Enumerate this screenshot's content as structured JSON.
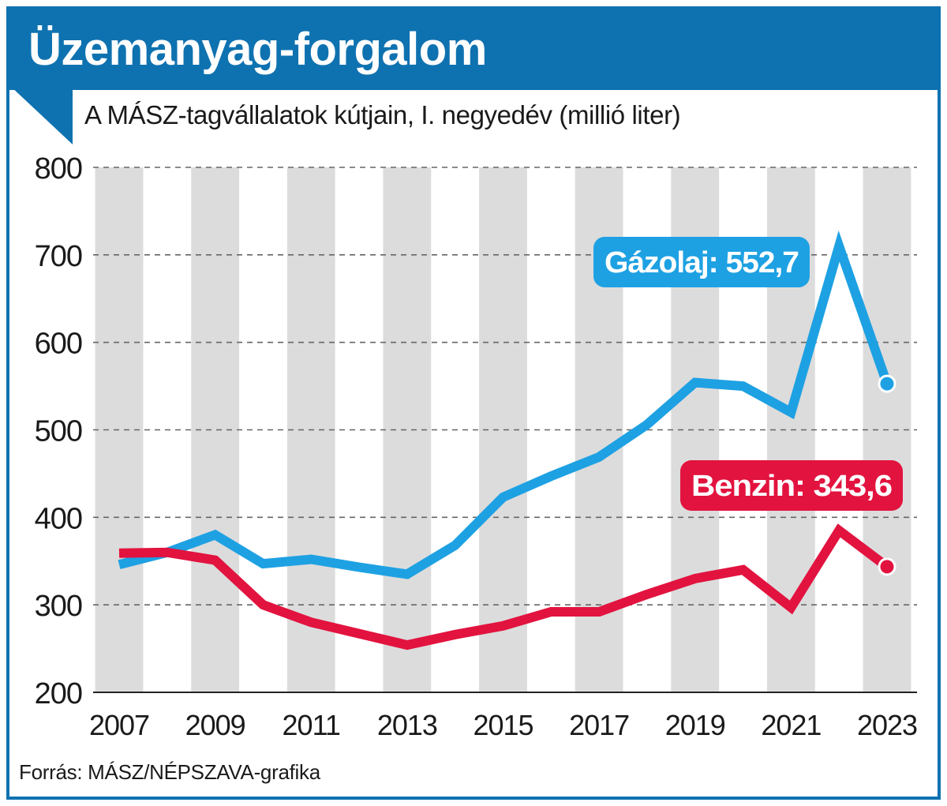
{
  "title": "Üzemanyag-forgalom",
  "subtitle": "A MÁSZ-tagvállalatok kútjain, I. negyedév (millió liter)",
  "source": "Forrás: MÁSZ/NÉPSZAVA-grafika",
  "colors": {
    "brand": "#0f72b0",
    "diesel": "#1ea1e3",
    "petrol": "#e2133f",
    "stripe": "#dcdcdc",
    "grid": "#666666"
  },
  "chart_data": {
    "type": "line",
    "title": "Üzemanyag-forgalom",
    "subtitle": "A MÁSZ-tagvállalatok kútjain, I. negyedév (millió liter)",
    "xlabel": "",
    "ylabel": "millió liter",
    "x": [
      2007,
      2008,
      2009,
      2010,
      2011,
      2012,
      2013,
      2014,
      2015,
      2016,
      2017,
      2018,
      2019,
      2020,
      2021,
      2022,
      2023
    ],
    "x_tick_labels": [
      "2007",
      "2009",
      "2011",
      "2013",
      "2015",
      "2017",
      "2019",
      "2021",
      "2023"
    ],
    "y_ticks": [
      200,
      300,
      400,
      500,
      600,
      700,
      800
    ],
    "y_tick_labels": [
      "200",
      "300",
      "400",
      "500",
      "600",
      "700",
      "800"
    ],
    "ylim": [
      200,
      800
    ],
    "grid": true,
    "series": [
      {
        "name": "Gázolaj",
        "color": "#1ea1e3",
        "values": [
          346,
          360,
          380,
          347,
          352,
          343,
          335,
          368,
          423,
          447,
          469,
          506,
          554,
          550,
          520,
          710,
          552.7
        ],
        "label": "Gázolaj: 552,7"
      },
      {
        "name": "Benzin",
        "color": "#e2133f",
        "values": [
          359,
          360,
          351,
          300,
          280,
          267,
          254,
          266,
          276,
          292,
          292,
          312,
          330,
          340,
          297,
          385,
          343.6
        ],
        "label": "Benzin: 343,6"
      }
    ]
  }
}
